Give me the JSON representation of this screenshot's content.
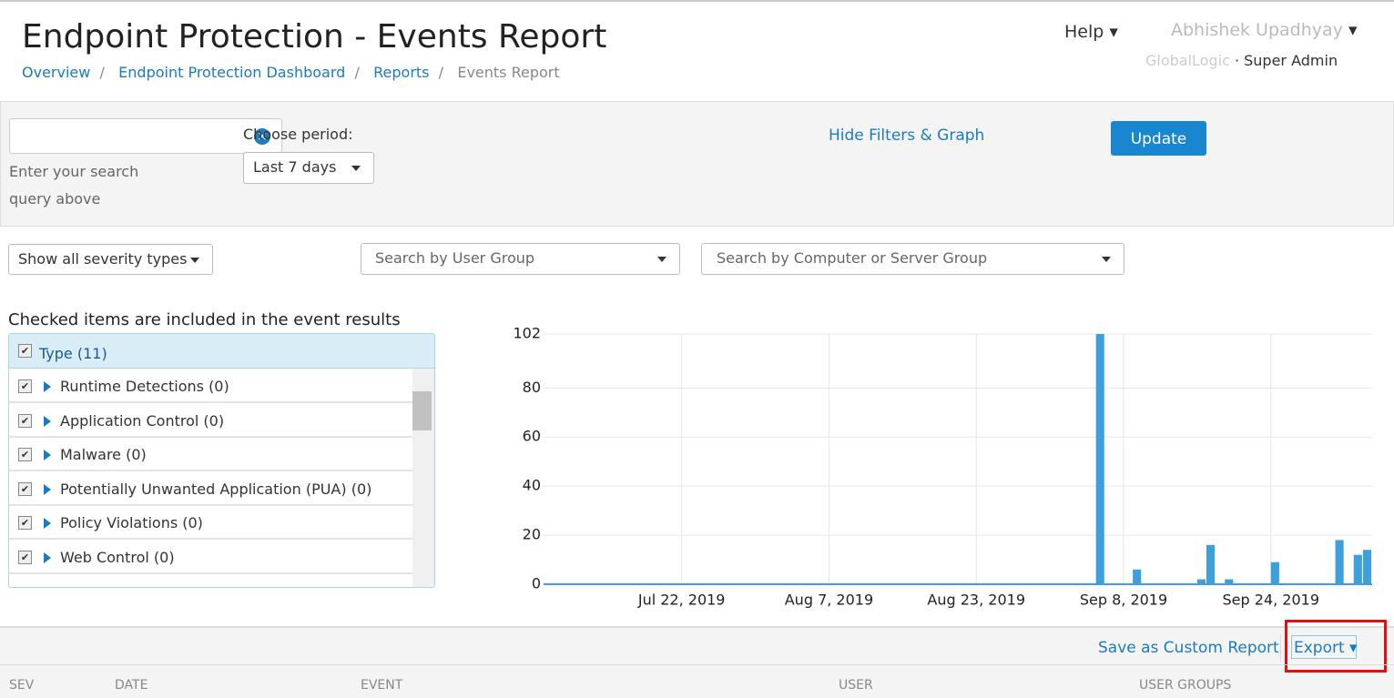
{
  "header": {
    "title": "Endpoint Protection - Events Report",
    "breadcrumbs": [
      "Overview",
      "Endpoint Protection Dashboard",
      "Reports",
      "Events Report"
    ],
    "help": "Help",
    "user": "Abhishek Upadhyay",
    "org": "GlobalLogic",
    "role": "Super Admin"
  },
  "filters": {
    "search_hint": "Enter your search query above",
    "period_label": "Choose period:",
    "period": "Last 7 days",
    "toggle": "Hide Filters & Graph",
    "update": "Update",
    "severity": "Show all severity types",
    "user_group": "Search by User Group",
    "computer_group": "Search by Computer or Server Group"
  },
  "types": {
    "caption": "Checked items are included in the event results",
    "header": "Type (11)",
    "items": [
      "Runtime Detections (0)",
      "Application Control (0)",
      "Malware (0)",
      "Potentially Unwanted Application (PUA) (0)",
      "Policy Violations (0)",
      "Web Control (0)"
    ]
  },
  "chart_data": {
    "type": "bar",
    "color": "#3d9fdb",
    "grid": true,
    "x": [
      "2019-09-05",
      "2019-09-09",
      "2019-09-16",
      "2019-09-17",
      "2019-09-19",
      "2019-09-24",
      "2019-10-01",
      "2019-10-03",
      "2019-10-04"
    ],
    "values": [
      102,
      6,
      2,
      16,
      2,
      9,
      18,
      12,
      14
    ],
    "xlim": [
      "2019-07-07",
      "2019-10-05"
    ],
    "xticks": [
      {
        "value": "2019-07-22",
        "label": "Jul 22, 2019"
      },
      {
        "value": "2019-08-07",
        "label": "Aug 7, 2019"
      },
      {
        "value": "2019-08-23",
        "label": "Aug 23, 2019"
      },
      {
        "value": "2019-09-08",
        "label": "Sep 8, 2019"
      },
      {
        "value": "2019-09-24",
        "label": "Sep 24, 2019"
      }
    ],
    "ylim": [
      0,
      102
    ],
    "yticks": [
      0,
      20,
      40,
      60,
      80,
      102
    ]
  },
  "actions": {
    "save": "Save as Custom Report",
    "export": "Export"
  },
  "table": {
    "columns": [
      "SEV",
      "DATE",
      "EVENT",
      "USER",
      "USER GROUPS"
    ]
  }
}
